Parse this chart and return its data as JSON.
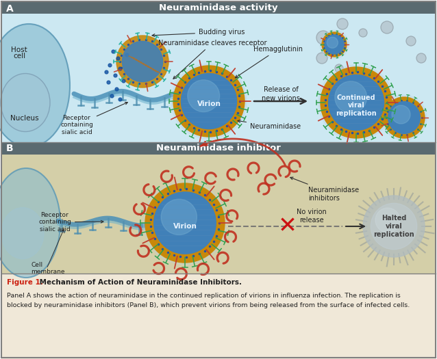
{
  "fig_width": 6.38,
  "fig_height": 5.25,
  "dpi": 100,
  "panel_a_title": "Neuraminidase activity",
  "panel_b_title": "Neuraminidase inhibitor",
  "panel_a_label": "A",
  "panel_b_label": "B",
  "fig_label_bold": "Figure 1.",
  "fig_label_italic": " Mechanism of Action of Neuraminidase Inhibitors.",
  "caption_line1": "Panel A shows the action of neuraminidase in the continued replication of virions in influenza infection. The replication is",
  "caption_line2": "blocked by neuraminidase inhibitors (Panel B), which prevent virions from being released from the surface of infected cells.",
  "bg_top": "#cce8f2",
  "bg_bottom": "#d4cfa8",
  "title_bar_color": "#5a6a70",
  "cell_fill": "#88bcd0",
  "cell_edge": "#5090b0",
  "nucleus_fill": "#a0c4d4",
  "virion_outer": "#c8880a",
  "virion_rim": "#e8c050",
  "virion_inner": "#4080b8",
  "virion_inner2": "#6090c8",
  "spike_green": "#30a050",
  "spike_teal": "#20b0a0",
  "spike_red": "#c04030",
  "inhibitor_color": "#c03020",
  "arrow_dark": "#303030",
  "dashed_color": "#707070",
  "cross_color": "#cc1010",
  "halted_outer": "#a0a8a8",
  "halted_inner": "#b8c0c0",
  "caption_bg": "#f0e8d8",
  "border_color": "#808080",
  "label_red": "#cc2010",
  "text_dark": "#202020",
  "dot_blue": "#1050a0"
}
